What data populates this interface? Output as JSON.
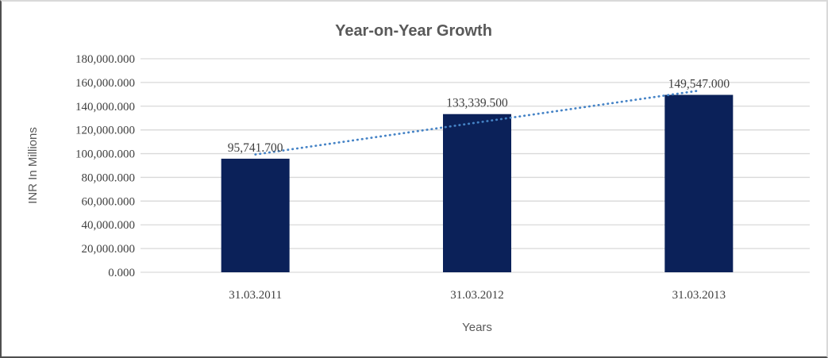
{
  "chart_data": {
    "type": "bar",
    "title": "Year-on-Year Growth",
    "categories": [
      "31.03.2011",
      "31.03.2012",
      "31.03.2013"
    ],
    "values": [
      95741.7,
      133339.5,
      149547.0
    ],
    "data_labels": [
      "95,741.700",
      "133,339.500",
      "149,547.000"
    ],
    "xlabel": "Years",
    "ylabel": "INR In Millions",
    "ylim": [
      0,
      180000
    ],
    "y_tick_step": 20000,
    "y_tick_labels": [
      "0.000",
      "20,000.000",
      "40,000.000",
      "60,000.000",
      "80,000.000",
      "100,000.000",
      "120,000.000",
      "140,000.000",
      "160,000.000",
      "180,000.000"
    ],
    "grid": "horizontal",
    "legend_position": "none",
    "trendline": {
      "type": "linear",
      "style": "dotted"
    }
  },
  "colors": {
    "bar": "#0b2159",
    "trendline": "#4583c6",
    "gridline": "#d9d9d9",
    "tick_text": "#404040",
    "title_text": "#595959",
    "background": "#ffffff"
  }
}
